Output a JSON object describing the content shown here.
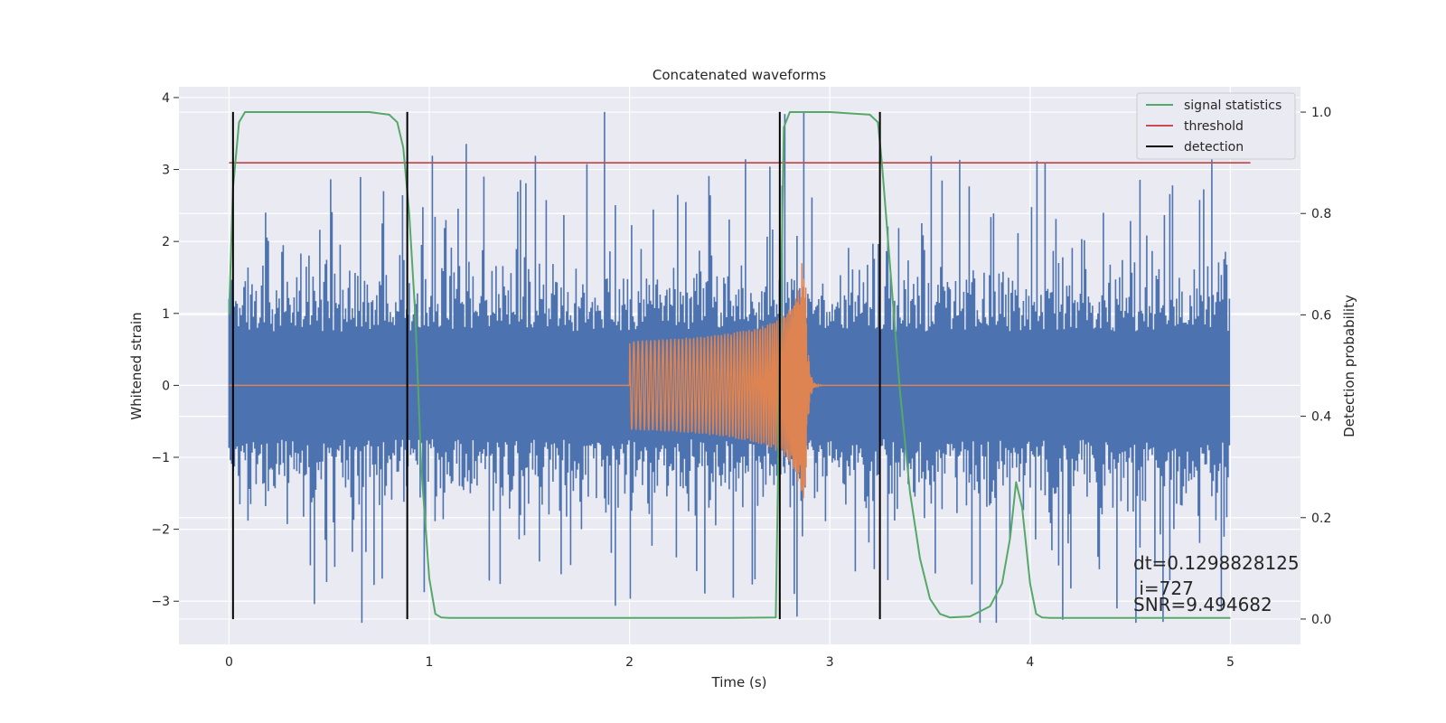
{
  "chart_data": {
    "type": "line",
    "title": "Concatenated waveforms",
    "xlabel": "Time (s)",
    "ylabel": "Whitened strain",
    "y2label": "Detection probability",
    "xlim": [
      -0.25,
      5.35
    ],
    "ylim": [
      -3.6,
      4.15
    ],
    "y2lim": [
      -0.05,
      1.05
    ],
    "x_ticks": [
      0,
      1,
      2,
      3,
      4,
      5
    ],
    "y_ticks": [
      -3,
      -2,
      -1,
      0,
      1,
      2,
      3,
      4
    ],
    "y2_ticks": [
      0.0,
      0.2,
      0.4,
      0.6,
      0.8,
      1.0
    ],
    "grid": true,
    "legend": {
      "placement": "top-right",
      "entries": [
        "signal statistics",
        "threshold",
        "detection"
      ]
    },
    "series": [
      {
        "name": "signal statistics",
        "axis": "right",
        "color": "#55a868",
        "x": [
          0,
          0.02,
          0.05,
          0.08,
          0.15,
          0.4,
          0.7,
          0.8,
          0.84,
          0.87,
          0.9,
          0.93,
          0.96,
          1.0,
          1.03,
          1.06,
          1.1,
          1.5,
          2.0,
          2.5,
          2.73,
          2.75,
          2.77,
          2.8,
          3.0,
          3.2,
          3.24,
          3.26,
          3.3,
          3.35,
          3.4,
          3.45,
          3.5,
          3.55,
          3.6,
          3.7,
          3.8,
          3.86,
          3.9,
          3.93,
          3.96,
          4.0,
          4.03,
          4.06,
          4.1,
          4.5,
          5.0
        ],
        "y": [
          0.6,
          0.85,
          0.98,
          1.0,
          1.0,
          1.0,
          1.0,
          0.995,
          0.98,
          0.93,
          0.8,
          0.6,
          0.3,
          0.08,
          0.01,
          0.003,
          0.002,
          0.002,
          0.002,
          0.002,
          0.003,
          0.5,
          0.97,
          1.0,
          1.0,
          0.995,
          0.98,
          0.9,
          0.7,
          0.45,
          0.25,
          0.12,
          0.04,
          0.01,
          0.003,
          0.005,
          0.025,
          0.07,
          0.16,
          0.27,
          0.22,
          0.07,
          0.01,
          0.003,
          0.002,
          0.002,
          0.002
        ]
      },
      {
        "name": "threshold",
        "axis": "right",
        "color": "#c44e52",
        "x": [
          0,
          5.1
        ],
        "y": [
          0.9,
          0.9
        ]
      },
      {
        "name": "detection",
        "axis": "left",
        "color": "#000000",
        "x": [
          0.02,
          0.89,
          2.75,
          3.25
        ],
        "ymin": -3.25,
        "ymax": 3.8
      },
      {
        "axis": "left",
        "color": "#4c72b0",
        "kind": "noise",
        "x": [
          0,
          5
        ],
        "range": [
          -3.3,
          3.8
        ]
      },
      {
        "axis": "left",
        "color": "#dd8452",
        "kind": "chirp",
        "x": [
          0,
          5
        ],
        "start": 2.0,
        "merger": 2.88,
        "peak_amplitude": 1.7
      }
    ],
    "annotations": [
      "dt=0.1298828125",
      " i=727",
      "SNR=9.494682"
    ]
  }
}
